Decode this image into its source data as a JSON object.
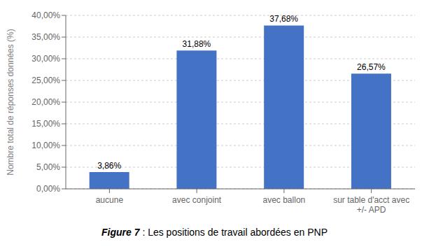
{
  "chart_data": {
    "type": "bar",
    "categories": [
      "aucune",
      "avec conjoint",
      "avec ballon",
      "sur table d'acct avec\n+/- APD"
    ],
    "values": [
      3.86,
      31.88,
      37.68,
      26.57
    ],
    "value_labels": [
      "3,86%",
      "31,88%",
      "37,68%",
      "26,57%"
    ],
    "data_labels": true,
    "color": "#4472C4",
    "ylabel": "Nombre total de réponses données (%)",
    "ylim": [
      0,
      40
    ],
    "yticks": [
      {
        "value": 0,
        "label": "0,00%"
      },
      {
        "value": 5,
        "label": "5,00%"
      },
      {
        "value": 10,
        "label": "10,00%"
      },
      {
        "value": 15,
        "label": "15,00%"
      },
      {
        "value": 20,
        "label": "20,00%"
      },
      {
        "value": 25,
        "label": "25,00%"
      },
      {
        "value": 30,
        "label": "30,00%"
      },
      {
        "value": 35,
        "label": "35,00%"
      },
      {
        "value": 40,
        "label": "40,00%"
      }
    ],
    "grid": true,
    "caption": [
      "Figure 7",
      ": Les positions de travail abordées en PNP"
    ]
  }
}
